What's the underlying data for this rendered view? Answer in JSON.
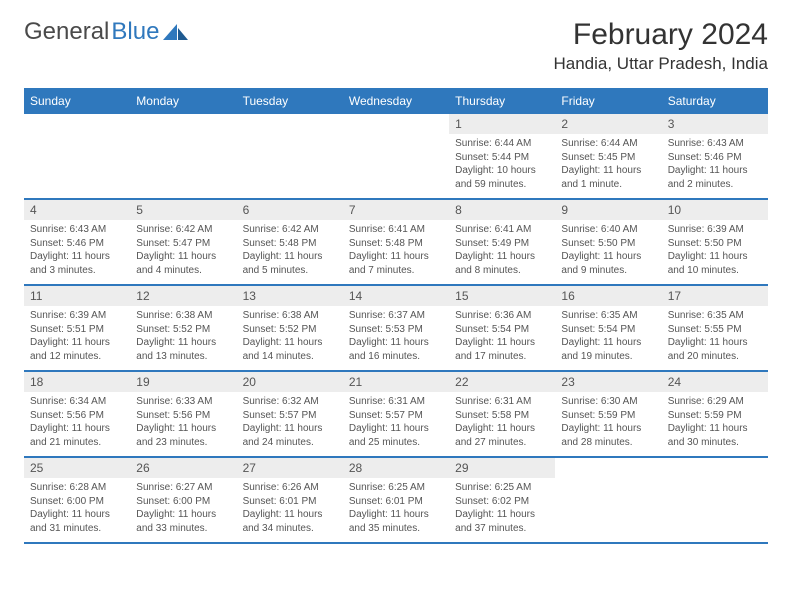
{
  "logo": {
    "text1": "General",
    "text2": "Blue"
  },
  "title": "February 2024",
  "location": "Handia, Uttar Pradesh, India",
  "colors": {
    "header_bg": "#2f78bd",
    "header_text": "#ffffff",
    "cell_num_bg": "#ededed",
    "divider": "#2f78bd",
    "body_text": "#555555"
  },
  "day_names": [
    "Sunday",
    "Monday",
    "Tuesday",
    "Wednesday",
    "Thursday",
    "Friday",
    "Saturday"
  ],
  "weeks": [
    [
      {
        "empty": true
      },
      {
        "empty": true
      },
      {
        "empty": true
      },
      {
        "empty": true
      },
      {
        "num": "1",
        "sunrise": "Sunrise: 6:44 AM",
        "sunset": "Sunset: 5:44 PM",
        "daylight": "Daylight: 10 hours and 59 minutes."
      },
      {
        "num": "2",
        "sunrise": "Sunrise: 6:44 AM",
        "sunset": "Sunset: 5:45 PM",
        "daylight": "Daylight: 11 hours and 1 minute."
      },
      {
        "num": "3",
        "sunrise": "Sunrise: 6:43 AM",
        "sunset": "Sunset: 5:46 PM",
        "daylight": "Daylight: 11 hours and 2 minutes."
      }
    ],
    [
      {
        "num": "4",
        "sunrise": "Sunrise: 6:43 AM",
        "sunset": "Sunset: 5:46 PM",
        "daylight": "Daylight: 11 hours and 3 minutes."
      },
      {
        "num": "5",
        "sunrise": "Sunrise: 6:42 AM",
        "sunset": "Sunset: 5:47 PM",
        "daylight": "Daylight: 11 hours and 4 minutes."
      },
      {
        "num": "6",
        "sunrise": "Sunrise: 6:42 AM",
        "sunset": "Sunset: 5:48 PM",
        "daylight": "Daylight: 11 hours and 5 minutes."
      },
      {
        "num": "7",
        "sunrise": "Sunrise: 6:41 AM",
        "sunset": "Sunset: 5:48 PM",
        "daylight": "Daylight: 11 hours and 7 minutes."
      },
      {
        "num": "8",
        "sunrise": "Sunrise: 6:41 AM",
        "sunset": "Sunset: 5:49 PM",
        "daylight": "Daylight: 11 hours and 8 minutes."
      },
      {
        "num": "9",
        "sunrise": "Sunrise: 6:40 AM",
        "sunset": "Sunset: 5:50 PM",
        "daylight": "Daylight: 11 hours and 9 minutes."
      },
      {
        "num": "10",
        "sunrise": "Sunrise: 6:39 AM",
        "sunset": "Sunset: 5:50 PM",
        "daylight": "Daylight: 11 hours and 10 minutes."
      }
    ],
    [
      {
        "num": "11",
        "sunrise": "Sunrise: 6:39 AM",
        "sunset": "Sunset: 5:51 PM",
        "daylight": "Daylight: 11 hours and 12 minutes."
      },
      {
        "num": "12",
        "sunrise": "Sunrise: 6:38 AM",
        "sunset": "Sunset: 5:52 PM",
        "daylight": "Daylight: 11 hours and 13 minutes."
      },
      {
        "num": "13",
        "sunrise": "Sunrise: 6:38 AM",
        "sunset": "Sunset: 5:52 PM",
        "daylight": "Daylight: 11 hours and 14 minutes."
      },
      {
        "num": "14",
        "sunrise": "Sunrise: 6:37 AM",
        "sunset": "Sunset: 5:53 PM",
        "daylight": "Daylight: 11 hours and 16 minutes."
      },
      {
        "num": "15",
        "sunrise": "Sunrise: 6:36 AM",
        "sunset": "Sunset: 5:54 PM",
        "daylight": "Daylight: 11 hours and 17 minutes."
      },
      {
        "num": "16",
        "sunrise": "Sunrise: 6:35 AM",
        "sunset": "Sunset: 5:54 PM",
        "daylight": "Daylight: 11 hours and 19 minutes."
      },
      {
        "num": "17",
        "sunrise": "Sunrise: 6:35 AM",
        "sunset": "Sunset: 5:55 PM",
        "daylight": "Daylight: 11 hours and 20 minutes."
      }
    ],
    [
      {
        "num": "18",
        "sunrise": "Sunrise: 6:34 AM",
        "sunset": "Sunset: 5:56 PM",
        "daylight": "Daylight: 11 hours and 21 minutes."
      },
      {
        "num": "19",
        "sunrise": "Sunrise: 6:33 AM",
        "sunset": "Sunset: 5:56 PM",
        "daylight": "Daylight: 11 hours and 23 minutes."
      },
      {
        "num": "20",
        "sunrise": "Sunrise: 6:32 AM",
        "sunset": "Sunset: 5:57 PM",
        "daylight": "Daylight: 11 hours and 24 minutes."
      },
      {
        "num": "21",
        "sunrise": "Sunrise: 6:31 AM",
        "sunset": "Sunset: 5:57 PM",
        "daylight": "Daylight: 11 hours and 25 minutes."
      },
      {
        "num": "22",
        "sunrise": "Sunrise: 6:31 AM",
        "sunset": "Sunset: 5:58 PM",
        "daylight": "Daylight: 11 hours and 27 minutes."
      },
      {
        "num": "23",
        "sunrise": "Sunrise: 6:30 AM",
        "sunset": "Sunset: 5:59 PM",
        "daylight": "Daylight: 11 hours and 28 minutes."
      },
      {
        "num": "24",
        "sunrise": "Sunrise: 6:29 AM",
        "sunset": "Sunset: 5:59 PM",
        "daylight": "Daylight: 11 hours and 30 minutes."
      }
    ],
    [
      {
        "num": "25",
        "sunrise": "Sunrise: 6:28 AM",
        "sunset": "Sunset: 6:00 PM",
        "daylight": "Daylight: 11 hours and 31 minutes."
      },
      {
        "num": "26",
        "sunrise": "Sunrise: 6:27 AM",
        "sunset": "Sunset: 6:00 PM",
        "daylight": "Daylight: 11 hours and 33 minutes."
      },
      {
        "num": "27",
        "sunrise": "Sunrise: 6:26 AM",
        "sunset": "Sunset: 6:01 PM",
        "daylight": "Daylight: 11 hours and 34 minutes."
      },
      {
        "num": "28",
        "sunrise": "Sunrise: 6:25 AM",
        "sunset": "Sunset: 6:01 PM",
        "daylight": "Daylight: 11 hours and 35 minutes."
      },
      {
        "num": "29",
        "sunrise": "Sunrise: 6:25 AM",
        "sunset": "Sunset: 6:02 PM",
        "daylight": "Daylight: 11 hours and 37 minutes."
      },
      {
        "empty": true
      },
      {
        "empty": true
      }
    ]
  ]
}
